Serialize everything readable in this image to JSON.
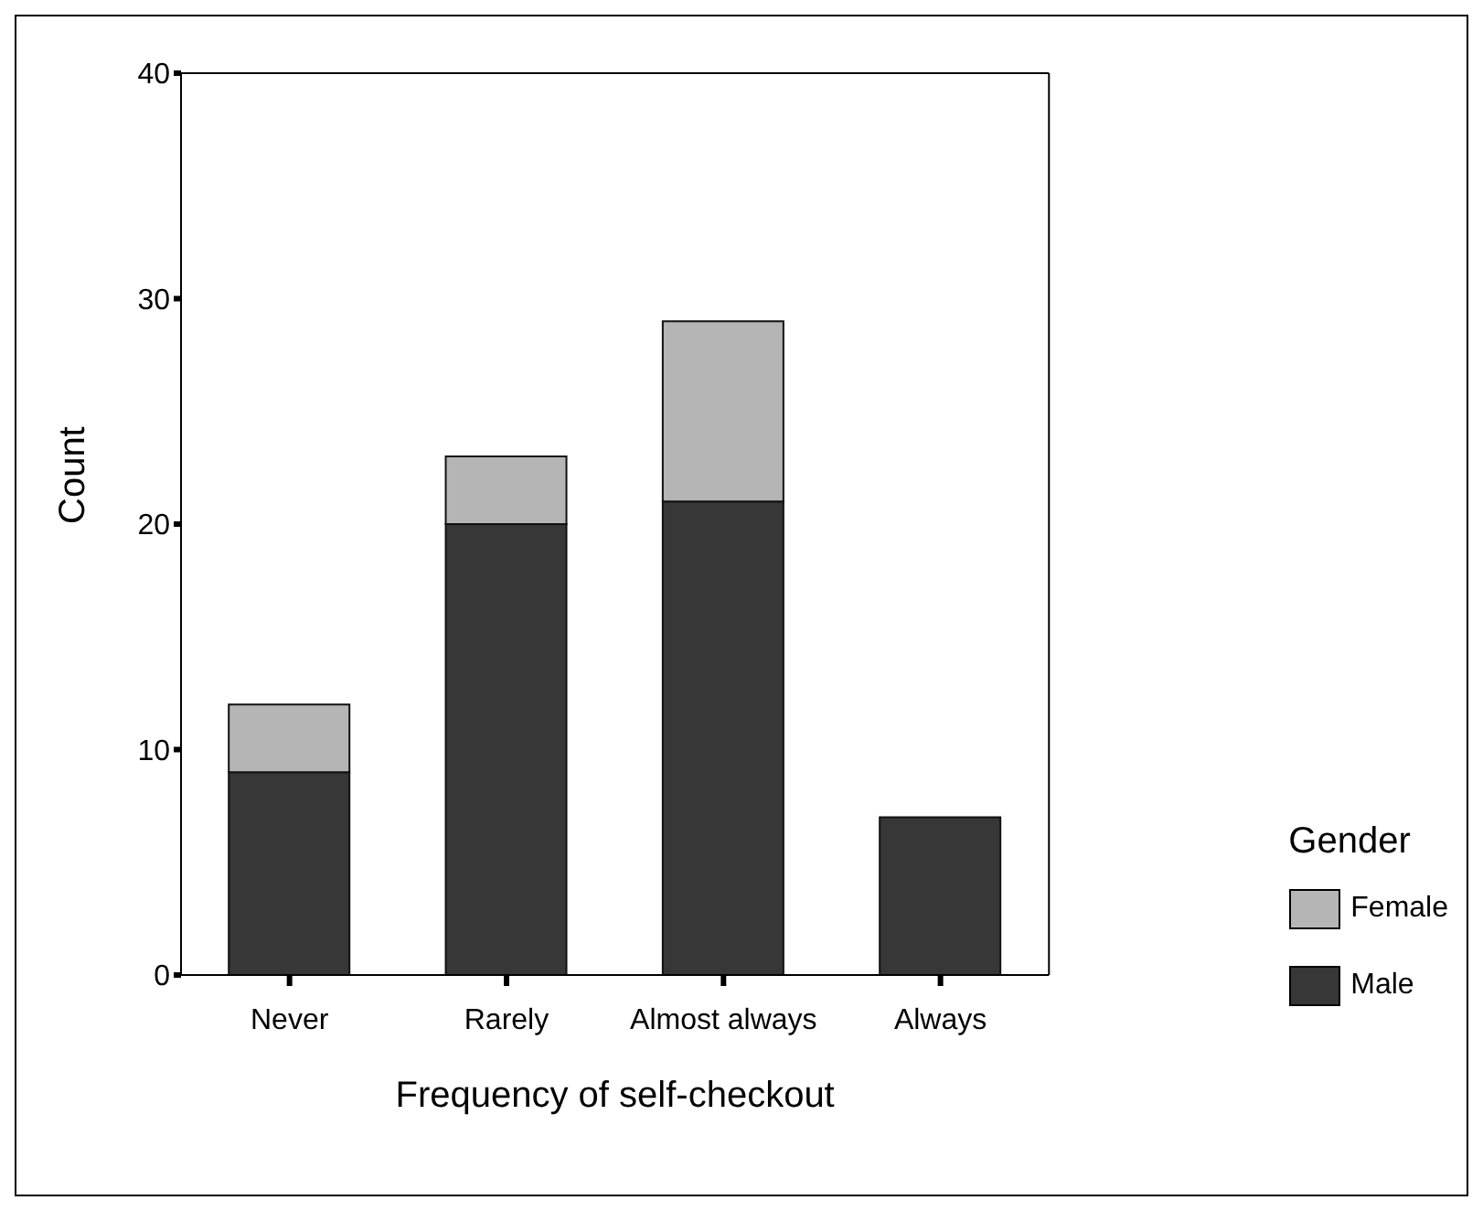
{
  "chart_data": {
    "type": "bar",
    "stacked": true,
    "xlabel": "Frequency of self-checkout",
    "ylabel": "Count",
    "legend_title": "Gender",
    "categories": [
      "Never",
      "Rarely",
      "Almost always",
      "Always"
    ],
    "series": [
      {
        "name": "Male",
        "color": "#373737",
        "values": [
          9,
          20,
          21,
          7
        ]
      },
      {
        "name": "Female",
        "color": "#b5b5b5",
        "values": [
          3,
          3,
          8,
          0
        ]
      }
    ],
    "ylim": [
      0,
      40
    ],
    "yticks": [
      0,
      10,
      20,
      30,
      40
    ],
    "grid": false,
    "legend": "right"
  }
}
